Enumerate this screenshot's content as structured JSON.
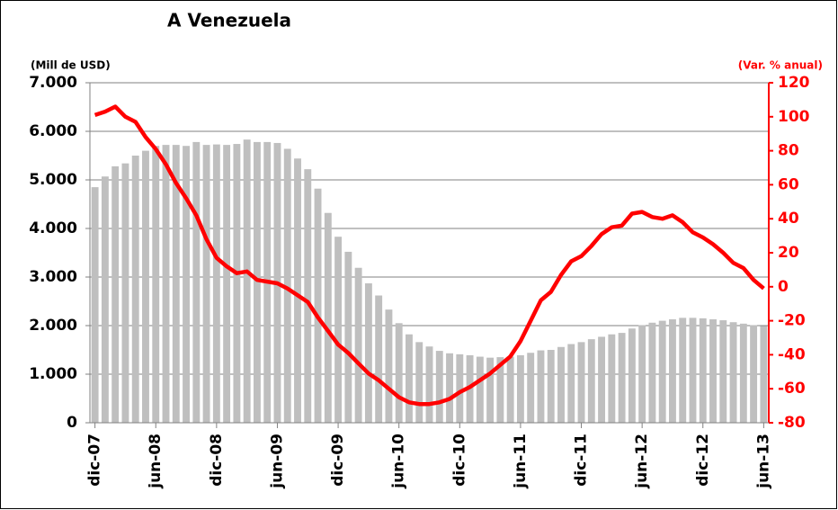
{
  "chart_data": {
    "type": "bar-line",
    "title": "A Venezuela",
    "y_label": "(Mill de USD)",
    "y2_label": "(Var. % anual)",
    "categories": [
      "dic-07",
      null,
      null,
      null,
      null,
      null,
      "jun-08",
      null,
      null,
      null,
      null,
      null,
      "dic-08",
      null,
      null,
      null,
      null,
      null,
      "jun-09",
      null,
      null,
      null,
      null,
      null,
      "dic-09",
      null,
      null,
      null,
      null,
      null,
      "jun-10",
      null,
      null,
      null,
      null,
      null,
      "dic-10",
      null,
      null,
      null,
      null,
      null,
      "jun-11",
      null,
      null,
      null,
      null,
      null,
      "dic-11",
      null,
      null,
      null,
      null,
      null,
      "jun-12",
      null,
      null,
      null,
      null,
      null,
      "dic-12",
      null,
      null,
      null,
      null,
      null,
      "jun-13"
    ],
    "series": [
      {
        "type": "bar",
        "color": "#bfbfbf",
        "values": [
          4850,
          5070,
          5280,
          5340,
          5500,
          5600,
          5700,
          5720,
          5720,
          5700,
          5780,
          5720,
          5730,
          5720,
          5740,
          5830,
          5780,
          5780,
          5760,
          5640,
          5440,
          5220,
          4820,
          4320,
          3830,
          3520,
          3190,
          2870,
          2620,
          2330,
          2050,
          1820,
          1660,
          1570,
          1480,
          1430,
          1410,
          1390,
          1360,
          1340,
          1350,
          1360,
          1390,
          1440,
          1490,
          1500,
          1560,
          1620,
          1660,
          1720,
          1770,
          1820,
          1850,
          1940,
          2010,
          2060,
          2100,
          2130,
          2160,
          2160,
          2150,
          2130,
          2110,
          2070,
          2040,
          2010,
          1990
        ]
      },
      {
        "type": "line",
        "axis": "y2",
        "color": "#ff0000",
        "values": [
          101,
          103,
          106,
          100,
          97,
          88,
          81,
          72,
          61,
          52,
          42,
          28,
          17,
          12,
          8,
          9,
          4,
          3,
          2,
          -1,
          -5,
          -9,
          -18,
          -26,
          -34,
          -39,
          -45,
          -51,
          -55,
          -60,
          -65,
          -68,
          -69,
          -69,
          -68,
          -66,
          -62,
          -59,
          -55,
          -51,
          -46,
          -41,
          -32,
          -20,
          -8,
          -3,
          7,
          15,
          18,
          24,
          31,
          35,
          36,
          43,
          44,
          41,
          40,
          42,
          38,
          32,
          29,
          25,
          20,
          14,
          11,
          4,
          -1
        ]
      }
    ],
    "ylim": [
      0,
      7000
    ],
    "yticks": [
      0,
      {
        "value": 1000,
        "label": "1.000"
      },
      {
        "value": 2000,
        "label": "2.000"
      },
      {
        "value": 3000,
        "label": "3.000"
      },
      {
        "value": 4000,
        "label": "4.000"
      },
      {
        "value": 5000,
        "label": "5.000"
      },
      {
        "value": 6000,
        "label": "6.000"
      },
      {
        "value": 7000,
        "label": "7.000"
      }
    ],
    "y2lim": [
      -80,
      120
    ],
    "y2ticks": [
      -80,
      -60,
      -40,
      -20,
      0,
      20,
      40,
      60,
      80,
      100,
      120
    ],
    "grid": true
  }
}
